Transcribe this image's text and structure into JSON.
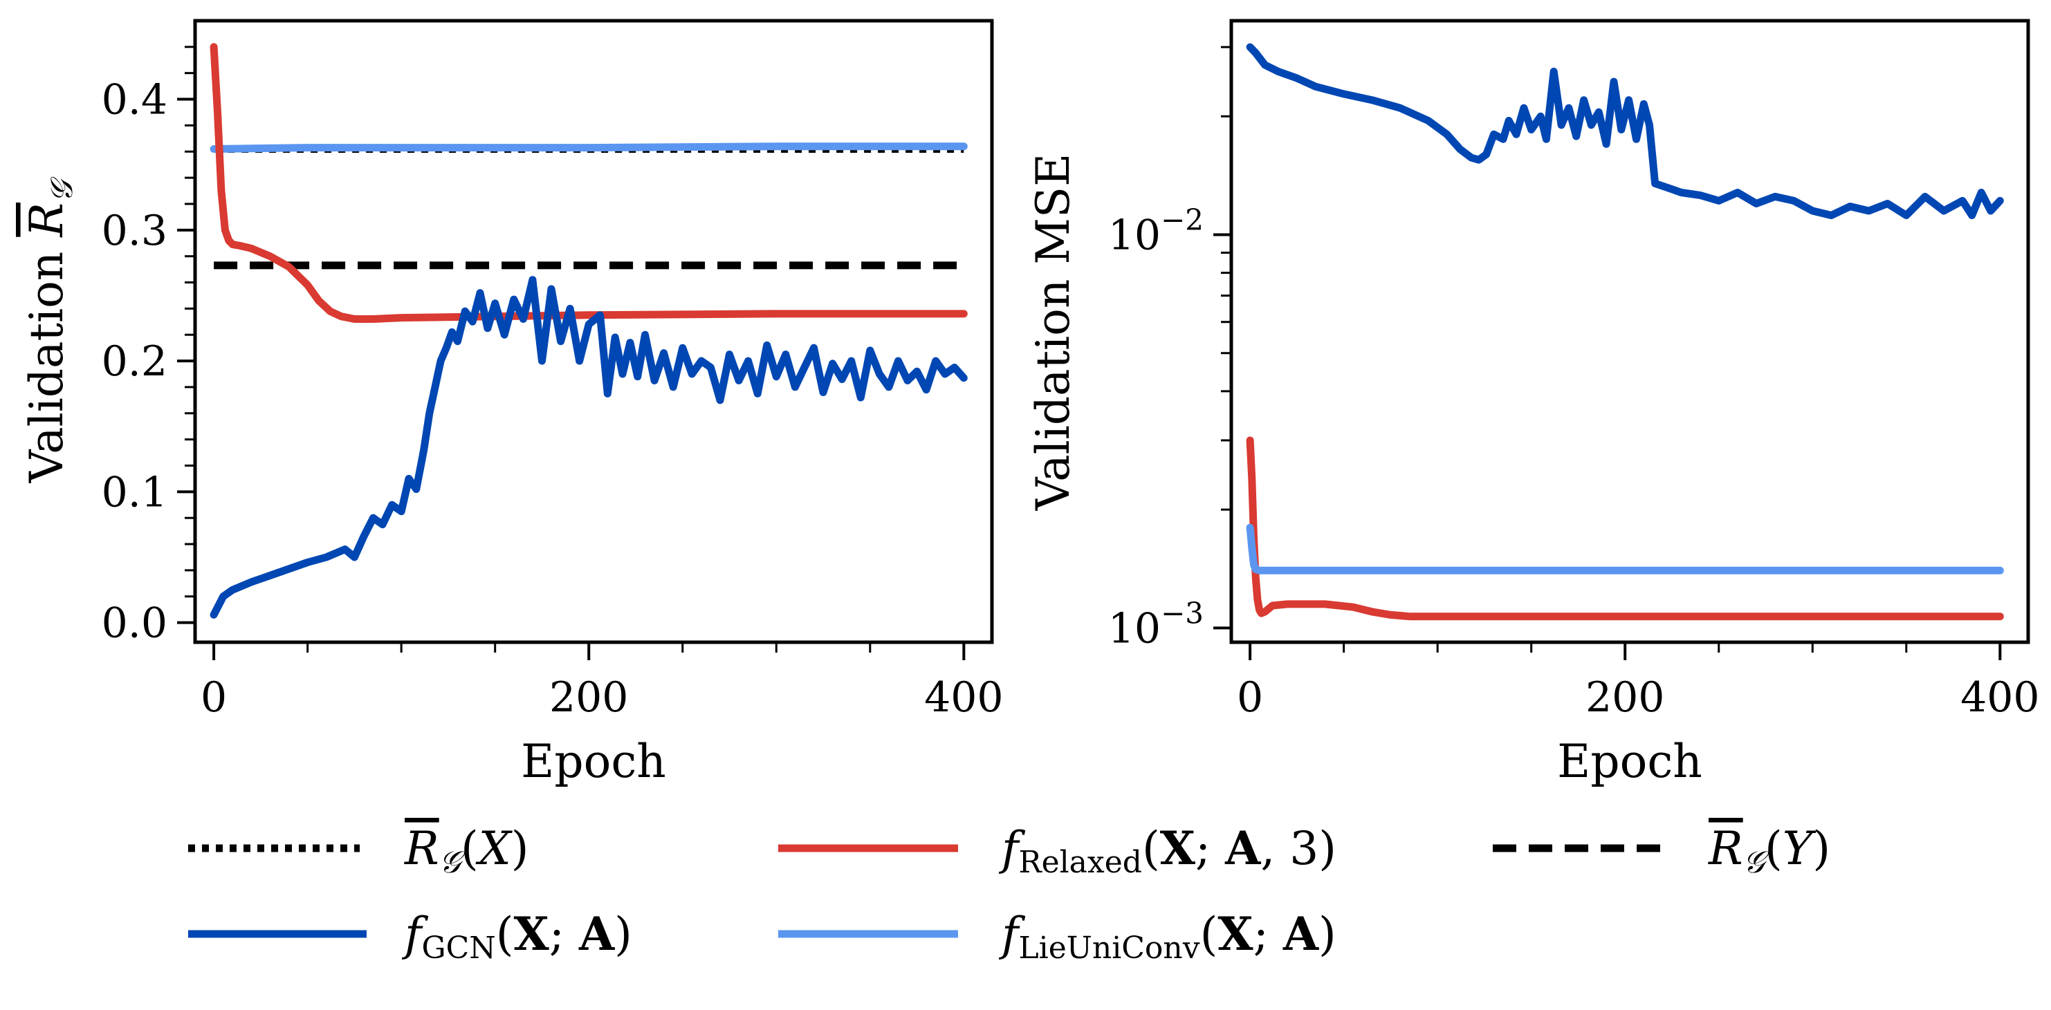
{
  "colors": {
    "gcn": "#0047b3",
    "relaxed": "#d93a32",
    "lie": "#5a96f0",
    "ref": "#000000"
  },
  "chart_data": [
    {
      "type": "line",
      "panel": "left",
      "xlabel": "Epoch",
      "ylabel": "Validation R̅_G",
      "ylabel_prefix": "Validation",
      "ylabel_symbol": "R",
      "ylabel_sub": "𝒢",
      "xlim": [
        -10,
        415
      ],
      "ylim": [
        -0.015,
        0.46
      ],
      "xticks_major": [
        0,
        200,
        400
      ],
      "xtick_labels": [
        "0",
        "200",
        "400"
      ],
      "xticks_minor": [
        50,
        100,
        150,
        250,
        300,
        350
      ],
      "yticks_major": [
        0.0,
        0.1,
        0.2,
        0.3,
        0.4
      ],
      "ytick_labels": [
        "0.0",
        "0.1",
        "0.2",
        "0.3",
        "0.4"
      ],
      "yticks_minor": [
        0.02,
        0.04,
        0.06,
        0.08,
        0.12,
        0.14,
        0.16,
        0.18,
        0.22,
        0.24,
        0.26,
        0.28,
        0.32,
        0.34,
        0.36,
        0.38,
        0.42,
        0.44
      ],
      "series": [
        {
          "name": "RX_mean",
          "style": "dotted",
          "color_key": "ref",
          "x": [
            0,
            400
          ],
          "y": [
            0.362,
            0.362
          ]
        },
        {
          "name": "lieuniconv",
          "style": "solid",
          "color_key": "lie",
          "x": [
            0,
            50,
            100,
            200,
            300,
            400
          ],
          "y": [
            0.362,
            0.363,
            0.363,
            0.363,
            0.364,
            0.364
          ]
        },
        {
          "name": "RY_mean",
          "style": "dashed",
          "color_key": "ref",
          "x": [
            0,
            400
          ],
          "y": [
            0.273,
            0.273
          ]
        },
        {
          "name": "relaxed",
          "style": "solid",
          "color_key": "relaxed",
          "x": [
            0,
            2,
            4,
            6,
            8,
            10,
            14,
            20,
            30,
            40,
            50,
            56,
            62,
            68,
            75,
            85,
            100,
            150,
            200,
            300,
            400
          ],
          "y": [
            0.44,
            0.39,
            0.33,
            0.3,
            0.292,
            0.289,
            0.288,
            0.286,
            0.28,
            0.272,
            0.258,
            0.246,
            0.238,
            0.234,
            0.232,
            0.232,
            0.233,
            0.234,
            0.235,
            0.236,
            0.236
          ]
        },
        {
          "name": "gcn",
          "style": "solid",
          "color_key": "gcn",
          "x": [
            0,
            5,
            10,
            20,
            30,
            40,
            50,
            60,
            70,
            75,
            80,
            85,
            90,
            95,
            100,
            104,
            108,
            112,
            115,
            118,
            121,
            124,
            127,
            130,
            134,
            138,
            142,
            146,
            150,
            155,
            160,
            165,
            170,
            175,
            180,
            185,
            190,
            195,
            200,
            206,
            210,
            214,
            218,
            222,
            226,
            230,
            235,
            240,
            245,
            250,
            255,
            260,
            265,
            270,
            275,
            280,
            285,
            290,
            295,
            300,
            305,
            310,
            315,
            320,
            325,
            330,
            335,
            340,
            345,
            350,
            355,
            360,
            365,
            370,
            375,
            380,
            385,
            390,
            395,
            400
          ],
          "y": [
            0.006,
            0.02,
            0.025,
            0.031,
            0.036,
            0.041,
            0.046,
            0.05,
            0.056,
            0.05,
            0.066,
            0.08,
            0.075,
            0.09,
            0.085,
            0.11,
            0.102,
            0.132,
            0.16,
            0.18,
            0.2,
            0.21,
            0.222,
            0.215,
            0.238,
            0.23,
            0.252,
            0.225,
            0.244,
            0.22,
            0.247,
            0.232,
            0.262,
            0.2,
            0.255,
            0.215,
            0.24,
            0.2,
            0.228,
            0.235,
            0.175,
            0.218,
            0.19,
            0.214,
            0.188,
            0.22,
            0.185,
            0.206,
            0.18,
            0.21,
            0.19,
            0.2,
            0.195,
            0.17,
            0.205,
            0.185,
            0.2,
            0.175,
            0.212,
            0.188,
            0.205,
            0.18,
            0.195,
            0.21,
            0.176,
            0.198,
            0.186,
            0.2,
            0.172,
            0.208,
            0.19,
            0.18,
            0.2,
            0.185,
            0.192,
            0.178,
            0.2,
            0.19,
            0.195,
            0.187
          ]
        }
      ]
    },
    {
      "type": "line",
      "panel": "right",
      "yscale": "log",
      "xlabel": "Epoch",
      "ylabel": "Validation MSE",
      "xlim": [
        -10,
        415
      ],
      "ylim": [
        0.00092,
        0.035
      ],
      "xticks_major": [
        0,
        200,
        400
      ],
      "xtick_labels": [
        "0",
        "200",
        "400"
      ],
      "xticks_minor": [
        50,
        100,
        150,
        250,
        300,
        350
      ],
      "yticks_major": [
        0.001,
        0.01
      ],
      "ytick_labels": [
        {
          "base": "10",
          "exp": "−3"
        },
        {
          "base": "10",
          "exp": "−2"
        }
      ],
      "yticks_minor": [
        0.002,
        0.003,
        0.004,
        0.005,
        0.006,
        0.007,
        0.008,
        0.009,
        0.02,
        0.03
      ],
      "series": [
        {
          "name": "gcn",
          "style": "solid",
          "color_key": "gcn",
          "x": [
            0,
            3,
            8,
            15,
            25,
            35,
            50,
            65,
            80,
            95,
            105,
            112,
            118,
            122,
            126,
            130,
            135,
            138,
            142,
            146,
            150,
            155,
            158,
            162,
            166,
            170,
            174,
            178,
            182,
            186,
            190,
            194,
            198,
            202,
            206,
            210,
            213,
            216,
            222,
            230,
            240,
            250,
            260,
            270,
            280,
            290,
            300,
            310,
            320,
            330,
            340,
            350,
            360,
            370,
            380,
            385,
            390,
            395,
            400
          ],
          "y": [
            0.03,
            0.029,
            0.027,
            0.026,
            0.025,
            0.0238,
            0.0228,
            0.022,
            0.021,
            0.0195,
            0.018,
            0.0165,
            0.0157,
            0.0155,
            0.016,
            0.018,
            0.0175,
            0.0195,
            0.018,
            0.021,
            0.0185,
            0.02,
            0.0175,
            0.026,
            0.019,
            0.021,
            0.0178,
            0.022,
            0.019,
            0.0205,
            0.017,
            0.0245,
            0.0185,
            0.022,
            0.0175,
            0.0215,
            0.019,
            0.0135,
            0.0132,
            0.0128,
            0.0126,
            0.0122,
            0.0128,
            0.012,
            0.0125,
            0.0122,
            0.0115,
            0.0112,
            0.0118,
            0.0115,
            0.012,
            0.0112,
            0.0125,
            0.0115,
            0.0122,
            0.0112,
            0.0128,
            0.0115,
            0.0122
          ]
        },
        {
          "name": "relaxed",
          "style": "solid",
          "color_key": "relaxed",
          "x": [
            0,
            1,
            2,
            3,
            4,
            5,
            6,
            8,
            12,
            20,
            40,
            55,
            65,
            75,
            85,
            100,
            150,
            200,
            250,
            300,
            350,
            400
          ],
          "y": [
            0.003,
            0.0024,
            0.0017,
            0.00135,
            0.00118,
            0.00111,
            0.00109,
            0.0011,
            0.00114,
            0.00115,
            0.00115,
            0.00113,
            0.0011,
            0.00108,
            0.00107,
            0.00107,
            0.00107,
            0.00107,
            0.00107,
            0.00107,
            0.00107,
            0.00107
          ]
        },
        {
          "name": "lieuniconv",
          "style": "solid",
          "color_key": "lie",
          "x": [
            0,
            1,
            2,
            3,
            5,
            10,
            50,
            100,
            200,
            300,
            400
          ],
          "y": [
            0.0018,
            0.0016,
            0.00145,
            0.00141,
            0.0014,
            0.0014,
            0.0014,
            0.0014,
            0.0014,
            0.0014,
            0.0014
          ]
        }
      ]
    }
  ],
  "legend": [
    {
      "key": "RX_mean",
      "style": "dotted",
      "color_key": "ref",
      "label": "R̅_G(X)",
      "parts": {
        "sym": "R",
        "sub": "𝒢",
        "arg": "X"
      }
    },
    {
      "key": "relaxed",
      "style": "solid",
      "color_key": "relaxed",
      "label": "f_Relaxed(X; A, 3)",
      "parts": {
        "f": "f",
        "sub": "Relaxed",
        "open": "(",
        "X": "X",
        "sep": "; ",
        "A": "A",
        "rest": ", 3)"
      }
    },
    {
      "key": "RY_mean",
      "style": "dashed",
      "color_key": "ref",
      "label": "R̅_G(Y)",
      "parts": {
        "sym": "R",
        "sub": "𝒢",
        "arg": "Y"
      }
    },
    {
      "key": "gcn",
      "style": "solid",
      "color_key": "gcn",
      "label": "f_GCN(X; A)",
      "parts": {
        "f": "f",
        "sub": "GCN",
        "open": "(",
        "X": "X",
        "sep": "; ",
        "A": "A",
        "rest": ")"
      }
    },
    {
      "key": "lieuniconv",
      "style": "solid",
      "color_key": "lie",
      "label": "f_LieUniConv(X; A)",
      "parts": {
        "f": "f",
        "sub": "LieUniConv",
        "open": "(",
        "X": "X",
        "sep": "; ",
        "A": "A",
        "rest": ")"
      }
    }
  ]
}
